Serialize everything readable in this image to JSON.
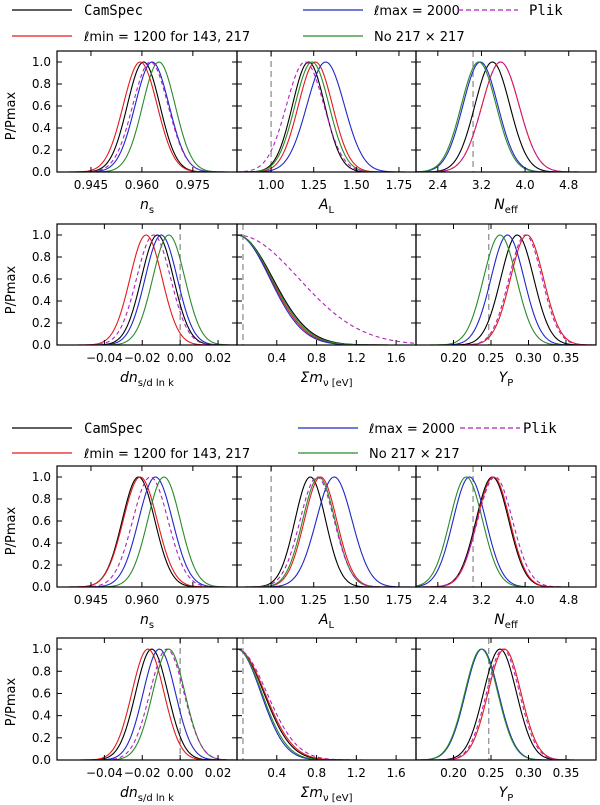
{
  "colors": {
    "camspec": "#000000",
    "lmin": "#e41a1c",
    "lmax": "#1f27c8",
    "no217": "#2a8a2a",
    "plik": "#b020c0",
    "ref": "#888888"
  },
  "legend": {
    "camspec": "CamSpec",
    "lmin": "ℓmin = 1200 for 143, 217",
    "lmax": "ℓmax = 2000",
    "no217": "No 217 × 217",
    "plik": "Plik"
  },
  "y_label": "P/Pmax",
  "chart_data": [
    {
      "type": "line",
      "title": "",
      "block": "upper",
      "xlabel": "n_s",
      "xlim": [
        0.935,
        0.988
      ],
      "xticks": [
        0.945,
        0.96,
        0.975
      ],
      "tick_labels": [
        "0.945",
        "0.960",
        "0.975"
      ],
      "ylim": [
        0,
        1.1
      ],
      "yticks": [
        0.0,
        0.2,
        0.4,
        0.6,
        0.8,
        1.0
      ],
      "ytick_labels": [
        "0.0",
        "0.2",
        "0.4",
        "0.6",
        "0.8",
        "1.0"
      ],
      "series": [
        {
          "name": "CamSpec",
          "dist": "gauss",
          "mu": 0.9605,
          "sigma": 0.0048
        },
        {
          "name": "ℓmin = 1200 for 143, 217",
          "dist": "gauss",
          "mu": 0.9595,
          "sigma": 0.005
        },
        {
          "name": "ℓmax = 2000",
          "dist": "gauss",
          "mu": 0.963,
          "sigma": 0.005
        },
        {
          "name": "No 217 × 217",
          "dist": "gauss",
          "mu": 0.965,
          "sigma": 0.0048
        },
        {
          "name": "Plik",
          "dist": "gauss",
          "mu": 0.9625,
          "sigma": 0.0052
        }
      ]
    },
    {
      "type": "line",
      "block": "upper",
      "xlabel": "A_L",
      "xlim": [
        0.8,
        1.85
      ],
      "xticks": [
        1.0,
        1.25,
        1.5,
        1.75
      ],
      "tick_labels": [
        "1.00",
        "1.25",
        "1.50",
        "1.75"
      ],
      "ylim": [
        0,
        1.1
      ],
      "ref_line": 1.0,
      "series": [
        {
          "name": "CamSpec",
          "dist": "gauss",
          "mu": 1.22,
          "sigma": 0.095
        },
        {
          "name": "ℓmin = 1200 for 143, 217",
          "dist": "gauss",
          "mu": 1.26,
          "sigma": 0.1
        },
        {
          "name": "ℓmax = 2000",
          "dist": "gauss",
          "mu": 1.32,
          "sigma": 0.11
        },
        {
          "name": "No 217 × 217",
          "dist": "gauss",
          "mu": 1.24,
          "sigma": 0.1
        },
        {
          "name": "Plik",
          "dist": "gauss",
          "mu": 1.2,
          "sigma": 0.11
        }
      ]
    },
    {
      "type": "line",
      "block": "upper",
      "xlabel": "N_eff",
      "xlim": [
        2.0,
        5.3
      ],
      "xticks": [
        2.4,
        3.2,
        4.0,
        4.8
      ],
      "tick_labels": [
        "2.4",
        "3.2",
        "4.0",
        "4.8"
      ],
      "ylim": [
        0,
        1.1
      ],
      "ref_line": 3.046,
      "series": [
        {
          "name": "CamSpec",
          "dist": "gauss",
          "mu": 3.4,
          "sigma": 0.32
        },
        {
          "name": "ℓmin = 1200 for 143, 217",
          "dist": "gauss",
          "mu": 3.55,
          "sigma": 0.34
        },
        {
          "name": "ℓmax = 2000",
          "dist": "gauss",
          "mu": 3.18,
          "sigma": 0.32
        },
        {
          "name": "No 217 × 217",
          "dist": "gauss",
          "mu": 3.15,
          "sigma": 0.32
        },
        {
          "name": "Plik",
          "dist": "gauss",
          "mu": 3.55,
          "sigma": 0.34
        }
      ]
    },
    {
      "type": "line",
      "block": "upper",
      "xlabel": "dn_s/d ln k",
      "xlim": [
        -0.065,
        0.03
      ],
      "xticks": [
        -0.04,
        -0.02,
        0.0,
        0.02
      ],
      "tick_labels": [
        "−0.04",
        "−0.02",
        "0.00",
        "0.02"
      ],
      "ylim": [
        0,
        1.1
      ],
      "ref_line": 0.0,
      "series": [
        {
          "name": "CamSpec",
          "dist": "gauss",
          "mu": -0.012,
          "sigma": 0.0085
        },
        {
          "name": "ℓmin = 1200 for 143, 217",
          "dist": "gauss",
          "mu": -0.018,
          "sigma": 0.0085
        },
        {
          "name": "ℓmax = 2000",
          "dist": "gauss",
          "mu": -0.01,
          "sigma": 0.0085
        },
        {
          "name": "No 217 × 217",
          "dist": "gauss",
          "mu": -0.006,
          "sigma": 0.0085
        },
        {
          "name": "Plik",
          "dist": "gauss",
          "mu": -0.014,
          "sigma": 0.009
        }
      ]
    },
    {
      "type": "line",
      "block": "upper",
      "xlabel": "Σm_ν [eV]",
      "xlim": [
        0.0,
        1.8
      ],
      "xticks": [
        0.4,
        0.8,
        1.2,
        1.6
      ],
      "tick_labels": [
        "0.4",
        "0.8",
        "1.2",
        "1.6"
      ],
      "ylim": [
        0,
        1.1
      ],
      "ref_line": 0.06,
      "series": [
        {
          "name": "CamSpec",
          "dist": "halfgauss",
          "sigma": 0.36
        },
        {
          "name": "ℓmin = 1200 for 143, 217",
          "dist": "halfgauss",
          "sigma": 0.34
        },
        {
          "name": "ℓmax = 2000",
          "dist": "halfgauss",
          "sigma": 0.33
        },
        {
          "name": "No 217 × 217",
          "dist": "halfgauss",
          "sigma": 0.35
        },
        {
          "name": "Plik",
          "dist": "halfgauss",
          "sigma": 0.62
        }
      ]
    },
    {
      "type": "line",
      "block": "upper",
      "xlabel": "Y_P",
      "xlim": [
        0.15,
        0.39
      ],
      "xticks": [
        0.2,
        0.25,
        0.3,
        0.35
      ],
      "tick_labels": [
        "0.20",
        "0.25",
        "0.30",
        "0.35"
      ],
      "ylim": [
        0,
        1.1
      ],
      "ref_line": 0.247,
      "series": [
        {
          "name": "CamSpec",
          "dist": "gauss",
          "mu": 0.285,
          "sigma": 0.022
        },
        {
          "name": "ℓmin = 1200 for 143, 217",
          "dist": "gauss",
          "mu": 0.298,
          "sigma": 0.022
        },
        {
          "name": "ℓmax = 2000",
          "dist": "gauss",
          "mu": 0.272,
          "sigma": 0.022
        },
        {
          "name": "No 217 × 217",
          "dist": "gauss",
          "mu": 0.262,
          "sigma": 0.022
        },
        {
          "name": "Plik",
          "dist": "gauss",
          "mu": 0.296,
          "sigma": 0.022
        }
      ]
    },
    {
      "type": "line",
      "block": "lower",
      "xlabel": "n_s",
      "xlim": [
        0.935,
        0.988
      ],
      "xticks": [
        0.945,
        0.96,
        0.975
      ],
      "tick_labels": [
        "0.945",
        "0.960",
        "0.975"
      ],
      "ylim": [
        0,
        1.1
      ],
      "series": [
        {
          "name": "CamSpec",
          "dist": "gauss",
          "mu": 0.959,
          "sigma": 0.0048
        },
        {
          "name": "ℓmin = 1200 for 143, 217",
          "dist": "gauss",
          "mu": 0.9595,
          "sigma": 0.005
        },
        {
          "name": "ℓmax = 2000",
          "dist": "gauss",
          "mu": 0.964,
          "sigma": 0.005
        },
        {
          "name": "No 217 × 217",
          "dist": "gauss",
          "mu": 0.9665,
          "sigma": 0.0048
        },
        {
          "name": "Plik",
          "dist": "gauss",
          "mu": 0.9625,
          "sigma": 0.0052
        }
      ]
    },
    {
      "type": "line",
      "block": "lower",
      "xlabel": "A_L",
      "xlim": [
        0.8,
        1.85
      ],
      "xticks": [
        1.0,
        1.25,
        1.5,
        1.75
      ],
      "tick_labels": [
        "1.00",
        "1.25",
        "1.50",
        "1.75"
      ],
      "ylim": [
        0,
        1.1
      ],
      "ref_line": 1.0,
      "series": [
        {
          "name": "CamSpec",
          "dist": "gauss",
          "mu": 1.23,
          "sigma": 0.09
        },
        {
          "name": "ℓmin = 1200 for 143, 217",
          "dist": "gauss",
          "mu": 1.29,
          "sigma": 0.095
        },
        {
          "name": "ℓmax = 2000",
          "dist": "gauss",
          "mu": 1.37,
          "sigma": 0.105
        },
        {
          "name": "No 217 × 217",
          "dist": "gauss",
          "mu": 1.28,
          "sigma": 0.095
        },
        {
          "name": "Plik",
          "dist": "gauss",
          "mu": 1.27,
          "sigma": 0.1
        }
      ]
    },
    {
      "type": "line",
      "block": "lower",
      "xlabel": "N_eff",
      "xlim": [
        2.0,
        5.3
      ],
      "xticks": [
        2.4,
        3.2,
        4.0,
        4.8
      ],
      "tick_labels": [
        "2.4",
        "3.2",
        "4.0",
        "4.8"
      ],
      "ylim": [
        0,
        1.1
      ],
      "ref_line": 3.046,
      "series": [
        {
          "name": "CamSpec",
          "dist": "gauss",
          "mu": 3.4,
          "sigma": 0.3
        },
        {
          "name": "ℓmin = 1200 for 143, 217",
          "dist": "gauss",
          "mu": 3.42,
          "sigma": 0.3
        },
        {
          "name": "ℓmax = 2000",
          "dist": "gauss",
          "mu": 2.98,
          "sigma": 0.3
        },
        {
          "name": "No 217 × 217",
          "dist": "gauss",
          "mu": 2.92,
          "sigma": 0.3
        },
        {
          "name": "Plik",
          "dist": "gauss",
          "mu": 3.45,
          "sigma": 0.32
        }
      ]
    },
    {
      "type": "line",
      "block": "lower",
      "xlabel": "dn_s/d ln k",
      "xlim": [
        -0.065,
        0.03
      ],
      "xticks": [
        -0.04,
        -0.02,
        0.0,
        0.02
      ],
      "tick_labels": [
        "−0.04",
        "−0.02",
        "0.00",
        "0.02"
      ],
      "ylim": [
        0,
        1.1
      ],
      "ref_line": 0.0,
      "series": [
        {
          "name": "CamSpec",
          "dist": "gauss",
          "mu": -0.015,
          "sigma": 0.0085
        },
        {
          "name": "ℓmin = 1200 for 143, 217",
          "dist": "gauss",
          "mu": -0.017,
          "sigma": 0.0085
        },
        {
          "name": "ℓmax = 2000",
          "dist": "gauss",
          "mu": -0.011,
          "sigma": 0.0085
        },
        {
          "name": "No 217 × 217",
          "dist": "gauss",
          "mu": -0.006,
          "sigma": 0.0085
        },
        {
          "name": "Plik",
          "dist": "gauss",
          "mu": -0.007,
          "sigma": 0.009
        }
      ]
    },
    {
      "type": "line",
      "block": "lower",
      "xlabel": "Σm_ν [eV]",
      "xlim": [
        0.0,
        1.8
      ],
      "xticks": [
        0.4,
        0.8,
        1.2,
        1.6
      ],
      "tick_labels": [
        "0.4",
        "0.8",
        "1.2",
        "1.6"
      ],
      "ylim": [
        0,
        1.1
      ],
      "ref_line": 0.06,
      "series": [
        {
          "name": "CamSpec",
          "dist": "halfgauss",
          "sigma": 0.27
        },
        {
          "name": "ℓmin = 1200 for 143, 217",
          "dist": "halfgauss",
          "sigma": 0.28
        },
        {
          "name": "ℓmax = 2000",
          "dist": "halfgauss",
          "sigma": 0.24
        },
        {
          "name": "No 217 × 217",
          "dist": "halfgauss",
          "sigma": 0.25
        },
        {
          "name": "Plik",
          "dist": "halfgauss",
          "sigma": 0.3
        }
      ]
    },
    {
      "type": "line",
      "block": "lower",
      "xlabel": "Y_P",
      "xlim": [
        0.15,
        0.39
      ],
      "xticks": [
        0.2,
        0.25,
        0.3,
        0.35
      ],
      "tick_labels": [
        "0.20",
        "0.25",
        "0.30",
        "0.35"
      ],
      "ylim": [
        0,
        1.1
      ],
      "ref_line": 0.247,
      "series": [
        {
          "name": "CamSpec",
          "dist": "gauss",
          "mu": 0.262,
          "sigma": 0.022
        },
        {
          "name": "ℓmin = 1200 for 143, 217",
          "dist": "gauss",
          "mu": 0.268,
          "sigma": 0.022
        },
        {
          "name": "ℓmax = 2000",
          "dist": "gauss",
          "mu": 0.238,
          "sigma": 0.022
        },
        {
          "name": "No 217 × 217",
          "dist": "gauss",
          "mu": 0.237,
          "sigma": 0.022
        },
        {
          "name": "Plik",
          "dist": "gauss",
          "mu": 0.266,
          "sigma": 0.022
        }
      ]
    }
  ]
}
